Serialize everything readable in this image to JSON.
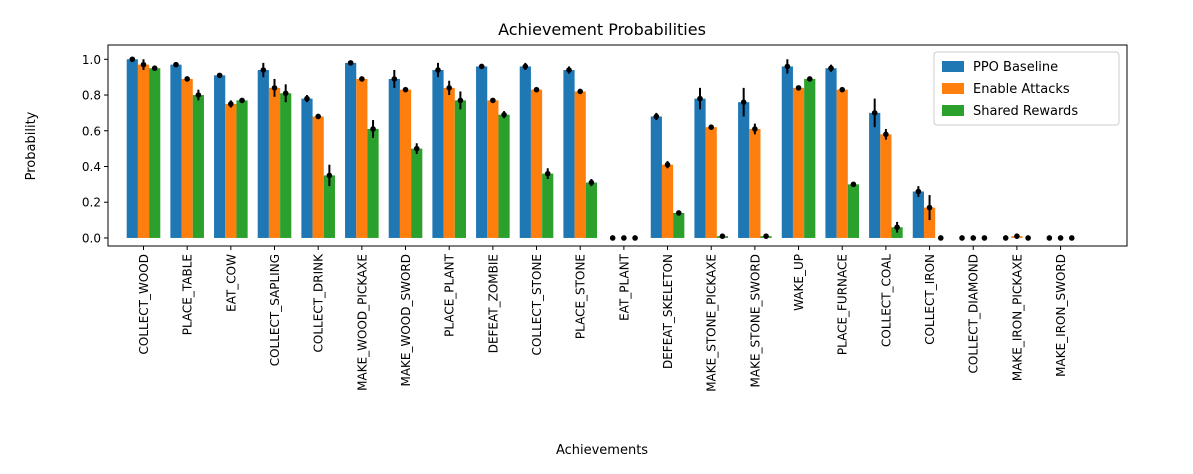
{
  "chart_data": {
    "type": "bar",
    "title": "Achievement Probabilities",
    "xlabel": "Achievements",
    "ylabel": "Probability",
    "ylim": [
      -0.045,
      1.08
    ],
    "yticks": [
      0.0,
      0.2,
      0.4,
      0.6,
      0.8,
      1.0
    ],
    "ytick_labels": [
      "0.0",
      "0.2",
      "0.4",
      "0.6",
      "0.8",
      "1.0"
    ],
    "grid": false,
    "legend_position": "upper right",
    "categories": [
      "COLLECT_WOOD",
      "PLACE_TABLE",
      "EAT_COW",
      "COLLECT_SAPLING",
      "COLLECT_DRINK",
      "MAKE_WOOD_PICKAXE",
      "MAKE_WOOD_SWORD",
      "PLACE_PLANT",
      "DEFEAT_ZOMBIE",
      "COLLECT_STONE",
      "PLACE_STONE",
      "EAT_PLANT",
      "DEFEAT_SKELETON",
      "MAKE_STONE_PICKAXE",
      "MAKE_STONE_SWORD",
      "WAKE_UP",
      "PLACE_FURNACE",
      "COLLECT_COAL",
      "COLLECT_IRON",
      "COLLECT_DIAMOND",
      "MAKE_IRON_PICKAXE",
      "MAKE_IRON_SWORD"
    ],
    "series": [
      {
        "name": "PPO Baseline",
        "color": "#1f77b4",
        "values": [
          1.0,
          0.97,
          0.91,
          0.94,
          0.78,
          0.98,
          0.89,
          0.94,
          0.96,
          0.96,
          0.94,
          0.0,
          0.68,
          0.78,
          0.76,
          0.96,
          0.95,
          0.7,
          0.26,
          0.0,
          0.0,
          0.0
        ],
        "errors": [
          0.01,
          0.01,
          0.01,
          0.04,
          0.02,
          0.01,
          0.05,
          0.04,
          0.01,
          0.02,
          0.02,
          0.0,
          0.02,
          0.06,
          0.08,
          0.04,
          0.02,
          0.08,
          0.03,
          0.0,
          0.0,
          0.01
        ]
      },
      {
        "name": "Enable Attacks",
        "color": "#ff7f0e",
        "values": [
          0.97,
          0.89,
          0.75,
          0.84,
          0.68,
          0.89,
          0.83,
          0.84,
          0.77,
          0.83,
          0.82,
          0.0,
          0.41,
          0.62,
          0.61,
          0.84,
          0.83,
          0.58,
          0.17,
          0.0,
          0.01,
          0.0
        ],
        "errors": [
          0.03,
          0.01,
          0.02,
          0.05,
          0.01,
          0.01,
          0.01,
          0.04,
          0.01,
          0.01,
          0.01,
          0.0,
          0.02,
          0.01,
          0.03,
          0.01,
          0.01,
          0.03,
          0.07,
          0.0,
          0.0,
          0.0
        ]
      },
      {
        "name": "Shared Rewards",
        "color": "#2ca02c",
        "values": [
          0.95,
          0.8,
          0.77,
          0.81,
          0.35,
          0.61,
          0.5,
          0.77,
          0.69,
          0.36,
          0.31,
          0.0,
          0.14,
          0.01,
          0.01,
          0.89,
          0.3,
          0.06,
          0.0,
          0.0,
          0.0,
          0.0
        ],
        "errors": [
          0.01,
          0.03,
          0.01,
          0.05,
          0.06,
          0.05,
          0.03,
          0.05,
          0.02,
          0.03,
          0.02,
          0.0,
          0.01,
          0.0,
          0.0,
          0.01,
          0.01,
          0.03,
          0.0,
          0.0,
          0.0,
          0.0
        ]
      }
    ]
  }
}
